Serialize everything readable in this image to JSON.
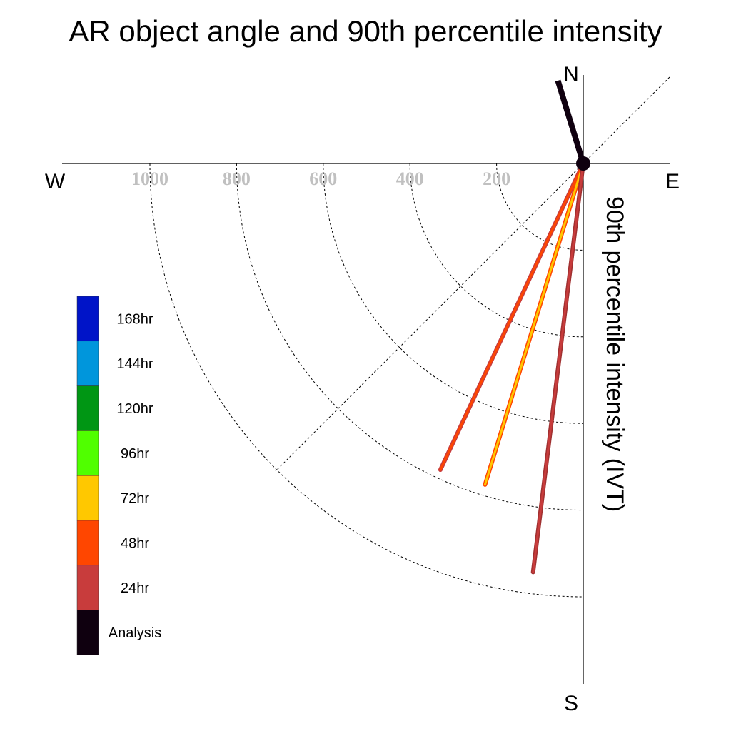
{
  "chart_data": {
    "type": "polar-line",
    "title": "AR object angle and 90th percentile intensity",
    "ylabel": "90th percentile intensity (IVT)",
    "directions": {
      "north": "N",
      "south": "S",
      "east": "E",
      "west": "W"
    },
    "radial_ticks": [
      200,
      400,
      600,
      800,
      1000
    ],
    "radial_tick_labels": [
      "200",
      "400",
      "600",
      "800",
      "1000"
    ],
    "radial_range": [
      0,
      1000
    ],
    "legend": [
      {
        "label": "168hr",
        "color": "#0014c8"
      },
      {
        "label": "144hr",
        "color": "#0096dc"
      },
      {
        "label": "120hr",
        "color": "#009614"
      },
      {
        "label": "96hr",
        "color": "#50ff00"
      },
      {
        "label": "72hr",
        "color": "#ffc800"
      },
      {
        "label": "48hr",
        "color": "#ff4600"
      },
      {
        "label": "24hr",
        "color": "#c83c3c"
      },
      {
        "label": "Analysis",
        "color": "#0f000f"
      }
    ],
    "series": [
      {
        "name": "Analysis",
        "angle_deg": -17,
        "intensity": 200,
        "color": "#0f000f",
        "outline": "#0f000f"
      },
      {
        "name": "48hr",
        "angle_deg": 205,
        "intensity": 780,
        "color": "#ff4600",
        "outline": "#c83c3c"
      },
      {
        "name": "72hr",
        "angle_deg": 197,
        "intensity": 775,
        "color": "#ffc800",
        "outline": "#ff4600"
      },
      {
        "name": "24hr",
        "angle_deg": 187,
        "intensity": 950,
        "color": "#c83c3c",
        "outline": "#a03030"
      }
    ]
  }
}
